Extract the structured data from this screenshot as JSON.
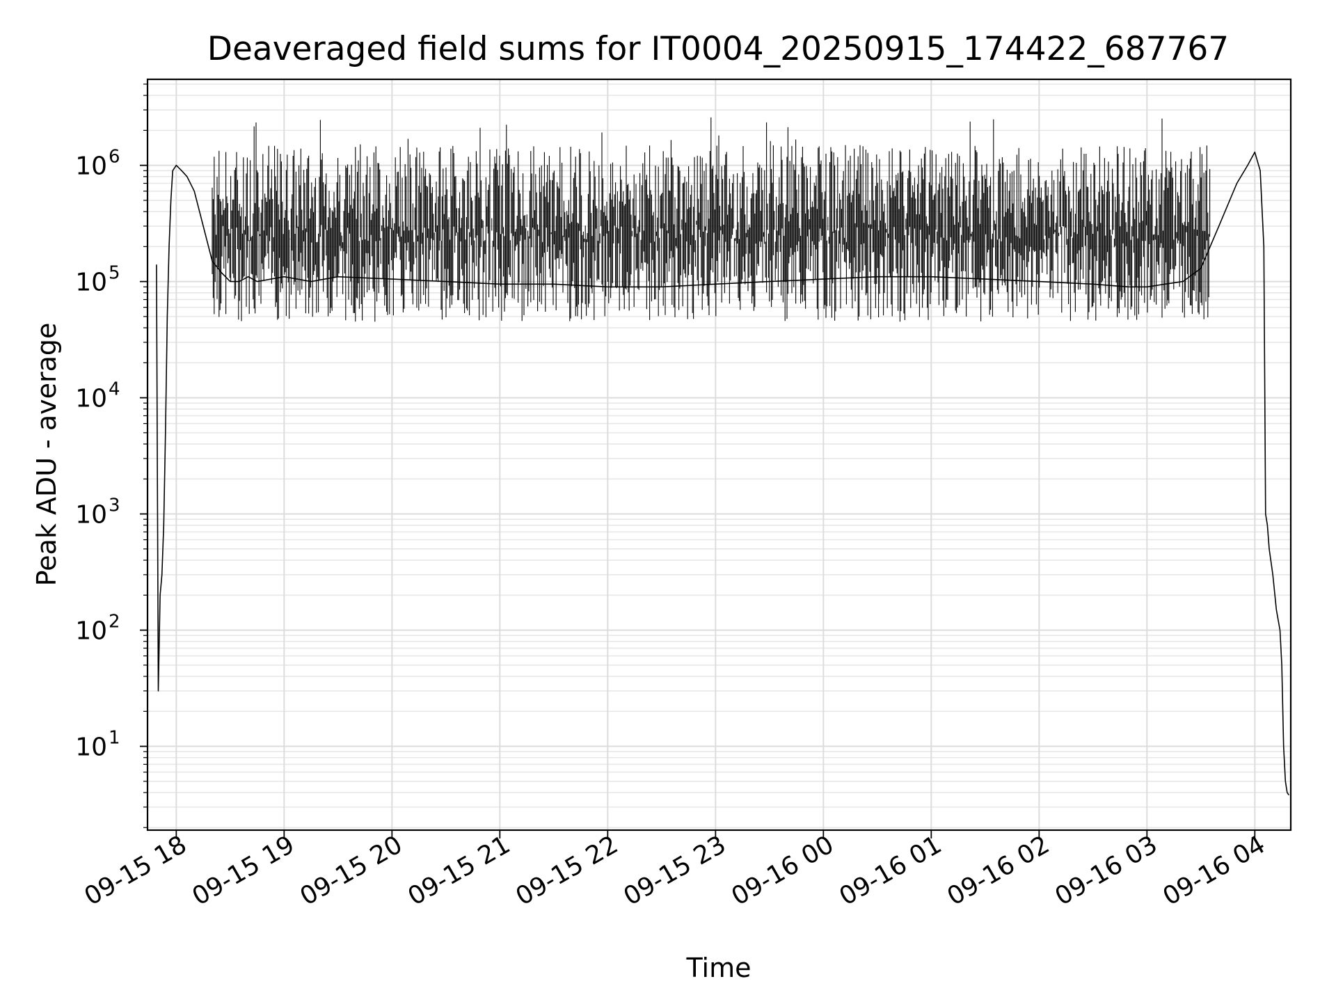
{
  "chart_data": {
    "type": "line",
    "title": "Deaveraged field sums for IT0004_20250915_174422_687767",
    "xlabel": "Time",
    "ylabel": "Peak ADU - average",
    "y_scale": "log",
    "ylim": [
      1.9,
      5500000
    ],
    "xlim": [
      "2025-09-15 17:44:00",
      "2025-09-16 04:20:00"
    ],
    "grid": true,
    "line_color": "#000000",
    "x_ticks": [
      {
        "time": "2025-09-15 18:00",
        "label": "09-15 18"
      },
      {
        "time": "2025-09-15 19:00",
        "label": "09-15 19"
      },
      {
        "time": "2025-09-15 20:00",
        "label": "09-15 20"
      },
      {
        "time": "2025-09-15 21:00",
        "label": "09-15 21"
      },
      {
        "time": "2025-09-15 22:00",
        "label": "09-15 22"
      },
      {
        "time": "2025-09-15 23:00",
        "label": "09-15 23"
      },
      {
        "time": "2025-09-16 00:00",
        "label": "09-16 00"
      },
      {
        "time": "2025-09-16 01:00",
        "label": "09-16 01"
      },
      {
        "time": "2025-09-16 02:00",
        "label": "09-16 02"
      },
      {
        "time": "2025-09-16 03:00",
        "label": "09-16 03"
      },
      {
        "time": "2025-09-16 04:00",
        "label": "09-16 04"
      }
    ],
    "y_ticks": [
      {
        "value": 10,
        "base": "10",
        "exp": "1"
      },
      {
        "value": 100,
        "base": "10",
        "exp": "2"
      },
      {
        "value": 1000,
        "base": "10",
        "exp": "3"
      },
      {
        "value": 10000,
        "base": "10",
        "exp": "4"
      },
      {
        "value": 100000,
        "base": "10",
        "exp": "5"
      },
      {
        "value": 1000000,
        "base": "10",
        "exp": "6"
      }
    ],
    "series": [
      {
        "x": [
          "2025-09-15 17:49:00",
          "2025-09-15 17:50:00",
          "2025-09-15 17:51:00",
          "2025-09-15 17:52:00",
          "2025-09-15 17:53:00",
          "2025-09-15 17:54:00",
          "2025-09-15 17:55:00",
          "2025-09-15 17:56:00",
          "2025-09-15 17:57:00",
          "2025-09-15 17:58:00",
          "2025-09-15 18:00:00",
          "2025-09-15 18:03:00",
          "2025-09-15 18:06:00",
          "2025-09-15 18:10:00",
          "2025-09-15 18:15:00",
          "2025-09-15 18:20:00",
          "2025-09-15 18:25:00",
          "2025-09-15 18:30:00",
          "2025-09-15 18:35:00",
          "2025-09-15 18:40:00",
          "2025-09-15 18:45:00",
          "2025-09-15 19:00:00",
          "2025-09-15 19:15:00",
          "2025-09-15 19:30:00",
          "2025-09-15 20:00:00",
          "2025-09-15 20:30:00",
          "2025-09-15 21:00:00",
          "2025-09-15 21:30:00",
          "2025-09-15 22:00:00",
          "2025-09-15 22:30:00",
          "2025-09-15 23:00:00",
          "2025-09-15 23:30:00",
          "2025-09-16 00:00:00",
          "2025-09-16 00:30:00",
          "2025-09-16 01:00:00",
          "2025-09-16 01:30:00",
          "2025-09-16 02:00:00",
          "2025-09-16 02:30:00",
          "2025-09-16 02:50:00",
          "2025-09-16 03:00:00",
          "2025-09-16 03:10:00",
          "2025-09-16 03:20:00",
          "2025-09-16 03:30:00",
          "2025-09-16 03:40:00",
          "2025-09-16 03:50:00",
          "2025-09-16 03:56:00",
          "2025-09-16 04:00:00",
          "2025-09-16 04:03:00",
          "2025-09-16 04:05:00",
          "2025-09-16 04:06:00",
          "2025-09-16 04:07:00",
          "2025-09-16 04:08:00",
          "2025-09-16 04:10:00",
          "2025-09-16 04:12:00",
          "2025-09-16 04:14:00",
          "2025-09-16 04:15:00",
          "2025-09-16 04:16:00",
          "2025-09-16 04:17:00",
          "2025-09-16 04:18:00",
          "2025-09-16 04:19:00"
        ],
        "y": [
          140000,
          30,
          200,
          300,
          800,
          5000,
          50000,
          200000,
          500000,
          900000,
          1000000,
          900000,
          800000,
          600000,
          300000,
          150000,
          120000,
          100000,
          100000,
          110000,
          100000,
          110000,
          100000,
          110000,
          105000,
          100000,
          95000,
          95000,
          90000,
          90000,
          95000,
          100000,
          105000,
          110000,
          110000,
          105000,
          100000,
          95000,
          90000,
          90000,
          95000,
          100000,
          130000,
          300000,
          700000,
          1000000,
          1300000,
          900000,
          200000,
          1000,
          800,
          500,
          300,
          150,
          100,
          50,
          10,
          5,
          4,
          3.8
        ],
        "noise_band": {
          "from": "2025-09-15 18:20:00",
          "to": "2025-09-16 03:35:00",
          "low": 45000,
          "high": 1500000,
          "spikes_max": 2700000
        }
      }
    ]
  }
}
